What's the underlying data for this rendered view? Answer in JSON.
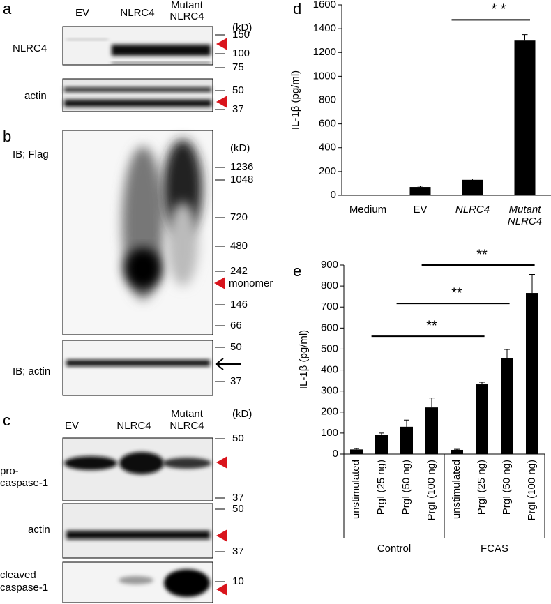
{
  "panels": [
    "a",
    "b",
    "c",
    "d",
    "e"
  ],
  "blot_a": {
    "lanes": [
      [
        "EV"
      ],
      [
        "NLRC4"
      ],
      [
        "Mutant",
        "NLRC4"
      ]
    ],
    "unit": "(kD)",
    "rows": [
      {
        "label": "NLRC4",
        "markers": [
          150,
          100,
          75
        ]
      },
      {
        "label": "actin",
        "markers": [
          50,
          37
        ]
      }
    ]
  },
  "blot_b": {
    "label": "IB; Flag",
    "unit": "(kD)",
    "markers": [
      1236,
      1048,
      720,
      480,
      242,
      146,
      66
    ],
    "annotation": "monomer",
    "actin_label": "IB; actin",
    "actin_markers": [
      50,
      37
    ]
  },
  "blot_c": {
    "lanes": [
      [
        "EV"
      ],
      [
        "NLRC4"
      ],
      [
        "Mutant",
        "NLRC4"
      ]
    ],
    "unit": "(kD)",
    "rows": [
      {
        "label": [
          "pro-",
          "caspase-1"
        ],
        "markers": [
          50,
          37
        ]
      },
      {
        "label": [
          "actin"
        ],
        "markers": [
          50,
          37
        ]
      },
      {
        "label": [
          "cleaved",
          "caspase-1"
        ],
        "markers": [
          10
        ]
      }
    ]
  },
  "chart_data": [
    {
      "type": "bar",
      "ylabel": "IL-1β (pg/ml)",
      "categories": [
        "Medium",
        "EV",
        "NLRC4",
        "Mutant NLRC4"
      ],
      "values": [
        2,
        70,
        130,
        1300
      ],
      "errors": [
        1,
        8,
        8,
        50
      ],
      "color": "#000000",
      "ylim": [
        0,
        1600
      ],
      "yticks": [
        0,
        200,
        400,
        600,
        800,
        1000,
        1200,
        1400,
        1600
      ],
      "annotations": [
        {
          "label": "* *",
          "from": 2,
          "to": 3,
          "y": 1475
        }
      ]
    },
    {
      "type": "bar",
      "ylabel": "IL-1β (pg/ml)",
      "categories": [
        "unstimulated",
        "PrgI (25 ng)",
        "PrgI (50 ng)",
        "PrgI (100 ng)",
        "unstimulated",
        "PrgI (25 ng)",
        "PrgI (50 ng)",
        "PrgI (100 ng)"
      ],
      "groups": [
        "Control",
        "FCAS"
      ],
      "values": [
        22,
        90,
        130,
        222,
        20,
        332,
        456,
        767
      ],
      "errors": [
        4,
        10,
        32,
        45,
        3,
        10,
        42,
        88
      ],
      "color": "#000000",
      "ylim": [
        0,
        900
      ],
      "yticks": [
        0,
        100,
        200,
        300,
        400,
        500,
        600,
        700,
        800,
        900
      ],
      "annotations": [
        {
          "label": "**",
          "from": 1,
          "to": 5,
          "y": 561
        },
        {
          "label": "**",
          "from": 2,
          "to": 6,
          "y": 717
        },
        {
          "label": "**",
          "from": 3,
          "to": 7,
          "y": 900
        }
      ]
    }
  ]
}
